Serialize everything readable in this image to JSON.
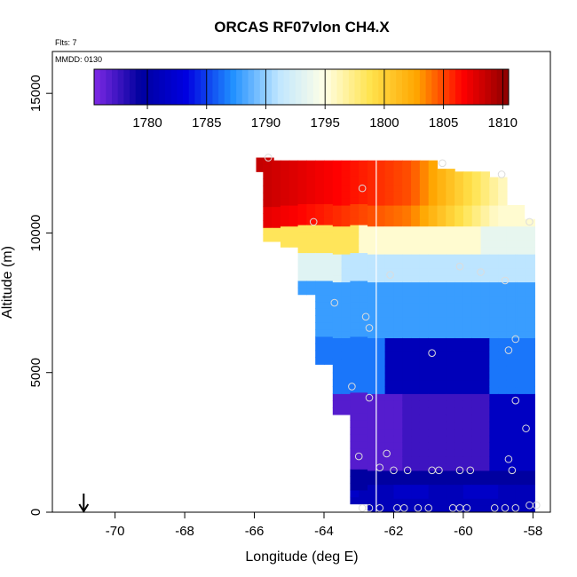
{
  "chart_data": {
    "type": "heatmap",
    "title": "ORCAS RF07vlon CH4.X",
    "xlabel": "Longitude (deg E)",
    "ylabel": "Altitude (m)",
    "xlim": [
      -71.8,
      -57.5
    ],
    "ylim": [
      0,
      16500
    ],
    "x_ticks": [
      -70,
      -68,
      -66,
      -64,
      -62,
      -60,
      -58
    ],
    "x_tick_labels": [
      "-70",
      "-68",
      "-66",
      "-64",
      "-62",
      "-60",
      "-58"
    ],
    "y_ticks": [
      0,
      5000,
      10000,
      15000
    ],
    "y_tick_labels": [
      "0",
      "5000",
      "10000",
      "15000"
    ],
    "flights_label": "Flts: 7",
    "date_label": "MMDD: 0130",
    "colorbar": {
      "min": 1775.5,
      "max": 1810.5,
      "ticks": [
        1780,
        1785,
        1790,
        1795,
        1800,
        1805,
        1810
      ],
      "tick_labels": [
        "1780",
        "1785",
        "1790",
        "1795",
        "1800",
        "1805",
        "1810"
      ],
      "colors": [
        "#7f2ae6",
        "#00009e",
        "#0000e0",
        "#1f8fff",
        "#bfe6ff",
        "#ffffe6",
        "#ffe34d",
        "#ffa500",
        "#ff0000",
        "#8b0000"
      ]
    },
    "vertical_line_x": -62.5,
    "arrow_x": -70.9,
    "field_columns": [
      {
        "lon": -65.7,
        "bottom": 12200,
        "top": 12700
      },
      {
        "lon": -65.5,
        "bottom": 9700,
        "top": 12600
      },
      {
        "lon": -65.0,
        "bottom": 9500,
        "top": 12600
      },
      {
        "lon": -64.5,
        "bottom": 7800,
        "top": 12600
      },
      {
        "lon": -64.0,
        "bottom": 5300,
        "top": 12600
      },
      {
        "lon": -63.5,
        "bottom": 3500,
        "top": 12600
      },
      {
        "lon": -63.0,
        "bottom": 300,
        "top": 12600
      },
      {
        "lon": -62.5,
        "bottom": 0,
        "top": 12600
      },
      {
        "lon": -62.0,
        "bottom": 0,
        "top": 12600
      },
      {
        "lon": -61.5,
        "bottom": 0,
        "top": 12600
      },
      {
        "lon": -61.0,
        "bottom": 0,
        "top": 12600
      },
      {
        "lon": -60.5,
        "bottom": 0,
        "top": 12300
      },
      {
        "lon": -60.0,
        "bottom": 0,
        "top": 12200
      },
      {
        "lon": -59.5,
        "bottom": 0,
        "top": 12200
      },
      {
        "lon": -59.0,
        "bottom": 0,
        "top": 12000
      },
      {
        "lon": -58.5,
        "bottom": 0,
        "top": 11000
      },
      {
        "lon": -58.2,
        "bottom": 0,
        "top": 10500
      }
    ],
    "sample_points": [
      {
        "lon": -65.6,
        "alt": 12700
      },
      {
        "lon": -62.9,
        "alt": 11600
      },
      {
        "lon": -60.6,
        "alt": 12500
      },
      {
        "lon": -58.9,
        "alt": 12100
      },
      {
        "lon": -64.3,
        "alt": 10400
      },
      {
        "lon": -58.1,
        "alt": 10400
      },
      {
        "lon": -60.1,
        "alt": 8800
      },
      {
        "lon": -59.5,
        "alt": 8600
      },
      {
        "lon": -58.8,
        "alt": 8300
      },
      {
        "lon": -62.1,
        "alt": 8500
      },
      {
        "lon": -63.7,
        "alt": 7500
      },
      {
        "lon": -62.8,
        "alt": 7000
      },
      {
        "lon": -62.7,
        "alt": 6600
      },
      {
        "lon": -58.5,
        "alt": 6200
      },
      {
        "lon": -58.7,
        "alt": 5800
      },
      {
        "lon": -60.9,
        "alt": 5700
      },
      {
        "lon": -63.2,
        "alt": 4500
      },
      {
        "lon": -62.7,
        "alt": 4100
      },
      {
        "lon": -58.5,
        "alt": 4000
      },
      {
        "lon": -58.2,
        "alt": 3000
      },
      {
        "lon": -62.2,
        "alt": 2100
      },
      {
        "lon": -63.0,
        "alt": 2000
      },
      {
        "lon": -58.7,
        "alt": 1900
      },
      {
        "lon": -62.4,
        "alt": 1600
      },
      {
        "lon": -62.0,
        "alt": 1500
      },
      {
        "lon": -61.6,
        "alt": 1500
      },
      {
        "lon": -60.9,
        "alt": 1500
      },
      {
        "lon": -60.7,
        "alt": 1500
      },
      {
        "lon": -60.1,
        "alt": 1500
      },
      {
        "lon": -59.8,
        "alt": 1500
      },
      {
        "lon": -58.6,
        "alt": 1500
      },
      {
        "lon": -62.9,
        "alt": 150
      },
      {
        "lon": -62.7,
        "alt": 150
      },
      {
        "lon": -62.4,
        "alt": 150
      },
      {
        "lon": -61.9,
        "alt": 150
      },
      {
        "lon": -61.7,
        "alt": 150
      },
      {
        "lon": -61.3,
        "alt": 150
      },
      {
        "lon": -61.0,
        "alt": 150
      },
      {
        "lon": -60.3,
        "alt": 150
      },
      {
        "lon": -60.1,
        "alt": 150
      },
      {
        "lon": -59.9,
        "alt": 150
      },
      {
        "lon": -59.1,
        "alt": 150
      },
      {
        "lon": -58.8,
        "alt": 150
      },
      {
        "lon": -58.5,
        "alt": 150
      },
      {
        "lon": -58.1,
        "alt": 250
      },
      {
        "lon": -57.9,
        "alt": 250
      }
    ]
  }
}
